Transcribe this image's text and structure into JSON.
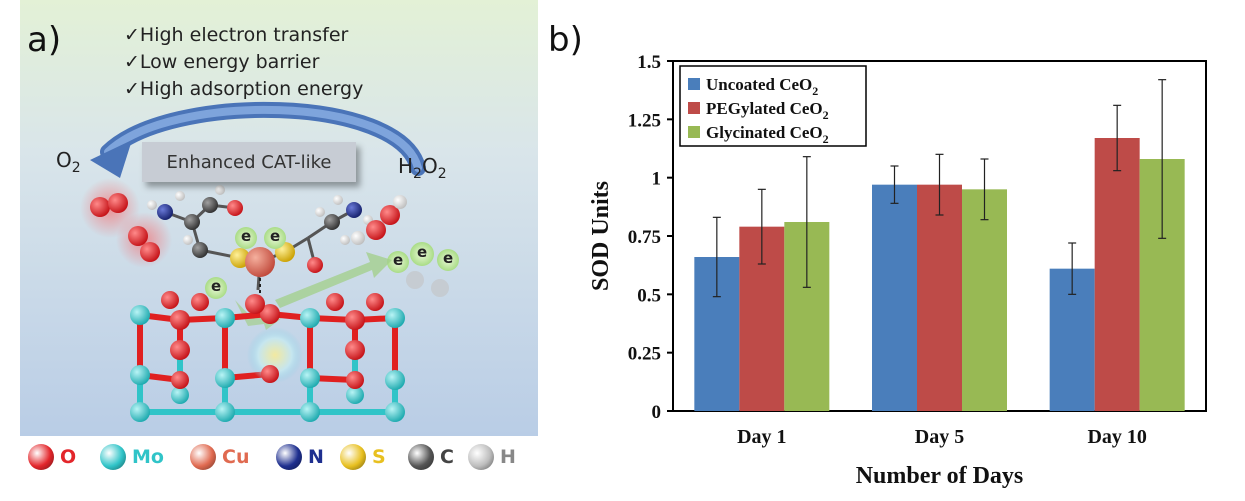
{
  "panel_a": {
    "label": "a)",
    "bullets": [
      "✓High electron transfer",
      "✓Low energy barrier",
      "✓High adsorption energy"
    ],
    "box_label": "Enhanced CAT-like",
    "left_molecule": "O",
    "left_molecule_sub": "2",
    "right_molecule": "H",
    "right_molecule_sub1": "2",
    "right_molecule_mid": "O",
    "right_molecule_sub2": "2",
    "electron_label": "e",
    "element_legend": [
      {
        "symbol": "O",
        "color": "#e3262b"
      },
      {
        "symbol": "Mo",
        "color": "#30c4c8"
      },
      {
        "symbol": "Cu",
        "color": "#e06a50"
      },
      {
        "symbol": "N",
        "color": "#1e2f8f"
      },
      {
        "symbol": "S",
        "color": "#e8c020"
      },
      {
        "symbol": "C",
        "color": "#555555"
      },
      {
        "symbol": "H",
        "color": "#bdbdbd"
      }
    ]
  },
  "panel_b": {
    "label": "b)"
  },
  "chart_data": {
    "type": "bar",
    "title": "",
    "xlabel": "Number of Days",
    "ylabel": "SOD Units",
    "categories": [
      "Day 1",
      "Day 5",
      "Day 10"
    ],
    "ylim": [
      0,
      1.5
    ],
    "yticks": [
      0,
      0.25,
      0.5,
      0.75,
      1,
      1.25,
      1.5
    ],
    "ytick_labels": [
      "0",
      "0.25",
      "0.5",
      "0.75",
      "1",
      "1.25",
      "1.5"
    ],
    "legend_position": "top-left",
    "series": [
      {
        "name": "Uncoated CeO",
        "sub": "2",
        "color": "#4a7ebb",
        "values": [
          0.66,
          0.97,
          0.61
        ],
        "err": [
          0.17,
          0.08,
          0.11
        ]
      },
      {
        "name": "PEGylated CeO",
        "sub": "2",
        "color": "#be4b48",
        "values": [
          0.79,
          0.97,
          1.17
        ],
        "err": [
          0.16,
          0.13,
          0.14
        ]
      },
      {
        "name": "Glycinated CeO",
        "sub": "2",
        "color": "#98b954",
        "values": [
          0.81,
          0.95,
          1.08
        ],
        "err": [
          0.28,
          0.13,
          0.34
        ]
      }
    ]
  }
}
